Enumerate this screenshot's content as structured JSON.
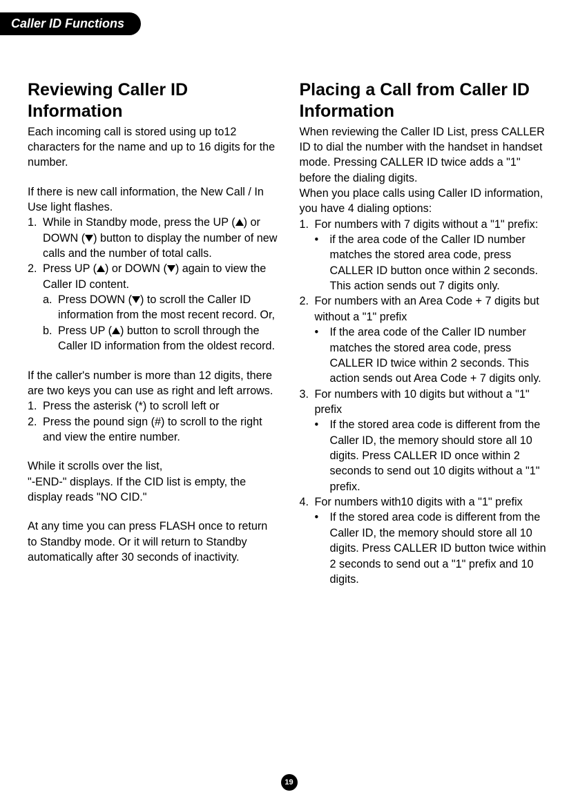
{
  "header": {
    "tab": "Caller ID Functions"
  },
  "left": {
    "title": "Reviewing Caller ID Information",
    "p1": "Each incoming call is stored using up to12 characters for the name and up to 16 digits for the number.",
    "p2": "If there is new call information, the New Call / In Use light flashes.",
    "l1_1a": "While in Standby mode, press the UP (",
    "l1_1b": ") or DOWN (",
    "l1_1c": ") button to display the number of new calls and the number of total calls.",
    "l1_2a": "Press UP (",
    "l1_2b": ") or DOWN (",
    "l1_2c": ") again to view the Caller ID content.",
    "l1_2_sa1": "Press DOWN (",
    "l1_2_sa2": ") to scroll the Caller ID information from the most recent record. Or,",
    "l1_2_sb1": "Press UP (",
    "l1_2_sb2": ") button to scroll through the Caller ID information from the oldest record.",
    "p3": "If the caller's number is more than 12 digits, there are two keys you can use as right and left arrows.",
    "l2_1": "Press the asterisk (*) to scroll left or",
    "l2_2": "Press the pound sign (#) to scroll to the right and view the entire number.",
    "p4a": "While it scrolls over the list,",
    "p4b": "\"-END-\" displays. If the CID list is empty, the display reads \"NO CID.\"",
    "p5": "At any time you can press FLASH once to return to Standby mode. Or it will return to Standby automatically after 30 seconds of inactivity."
  },
  "right": {
    "title": "Placing a Call from Caller ID Information",
    "p1": "When reviewing the Caller ID List, press CALLER ID to dial the number with the handset in handset mode. Pressing CALLER ID twice adds a \"1\" before the dialing digits.",
    "p2": "When you place calls using Caller ID information, you have 4 dialing options:",
    "i1": "For numbers with 7 digits without a \"1\" prefix:",
    "i1b": "if the area code of the Caller ID number matches the stored area code, press CALLER ID button once within 2 seconds. This action sends out 7 digits only.",
    "i2": "For numbers with an Area Code + 7 digits but without a \"1\" prefix",
    "i2b": "If the area code of the Caller ID number matches the stored area code, press CALLER ID twice within 2 seconds. This action sends out Area Code + 7 digits only.",
    "i3": "For numbers with 10 digits but without a \"1\" prefix",
    "i3b": "If the stored area code is different from the Caller ID, the memory should store all 10 digits. Press CALLER ID once within 2 seconds to send out 10 digits without a \"1\" prefix.",
    "i4": "For numbers with10 digits with a \"1\" prefix",
    "i4b": "If the stored area code is different from the Caller ID, the memory should store all 10 digits. Press CALLER ID button twice within 2 seconds to send out a \"1\" prefix and 10 digits."
  },
  "pageNumber": "19",
  "labels": {
    "n1": "1.",
    "n2": "2.",
    "n3": "3.",
    "n4": "4.",
    "sa": "a.",
    "sb": "b.",
    "bullet": "•"
  }
}
